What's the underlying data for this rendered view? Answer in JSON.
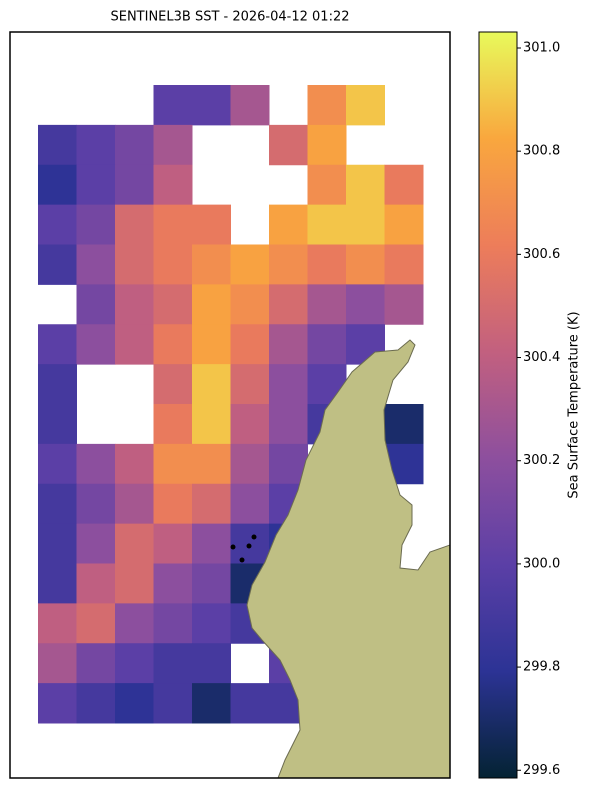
{
  "chart_data": {
    "type": "heatmap",
    "title": "SENTINEL3B SST - 2026-04-12 01:22",
    "colorbar_label": "Sea Surface Temperature (K)",
    "clim": [
      299.585,
      301.031
    ],
    "colorbar_ticks": [
      299.6,
      299.8,
      {
        "value": 300,
        "label": "300.0"
      },
      300.2,
      300.4,
      300.6,
      300.8,
      {
        "value": 301,
        "label": "301.0"
      }
    ],
    "colormap": [
      "#042333",
      "#2c3395",
      "#5b3fa6",
      "#8d4f9e",
      "#c2607f",
      "#ed7d5a",
      "#f9a73e",
      "#e8fa5b"
    ],
    "z": [
      [
        null,
        null,
        null,
        300.0,
        300.0,
        300.3,
        null,
        300.7,
        300.9,
        null
      ],
      [
        299.9,
        300.0,
        300.1,
        300.3,
        null,
        null,
        300.5,
        300.8,
        null,
        null
      ],
      [
        299.8,
        300.0,
        300.1,
        300.4,
        null,
        null,
        null,
        300.7,
        300.9,
        300.6
      ],
      [
        300.0,
        300.1,
        300.5,
        300.6,
        300.6,
        null,
        300.8,
        300.9,
        300.9,
        300.8
      ],
      [
        299.9,
        300.2,
        300.5,
        300.6,
        300.7,
        300.8,
        300.7,
        300.6,
        300.7,
        300.6
      ],
      [
        null,
        300.1,
        300.4,
        300.5,
        300.8,
        300.7,
        300.5,
        300.3,
        300.2,
        300.3
      ],
      [
        300.0,
        300.2,
        300.4,
        300.6,
        300.8,
        300.6,
        300.3,
        300.1,
        300.0,
        null
      ],
      [
        299.9,
        null,
        null,
        300.5,
        300.9,
        300.5,
        300.2,
        300.0,
        null,
        null
      ],
      [
        299.9,
        null,
        null,
        300.6,
        300.9,
        300.4,
        300.2,
        299.9,
        null,
        299.7
      ],
      [
        300.0,
        300.2,
        300.4,
        300.7,
        300.7,
        300.3,
        300.1,
        null,
        null,
        299.8
      ],
      [
        299.9,
        300.1,
        300.3,
        300.6,
        300.5,
        300.2,
        300.0,
        null,
        null,
        null
      ],
      [
        299.9,
        300.2,
        300.5,
        300.4,
        300.2,
        299.9,
        299.8,
        null,
        null,
        null
      ],
      [
        299.9,
        300.4,
        300.5,
        300.2,
        300.1,
        299.7,
        299.9,
        null,
        null,
        null
      ],
      [
        300.4,
        300.5,
        300.2,
        300.1,
        300.0,
        299.9,
        299.8,
        null,
        null,
        null
      ],
      [
        300.3,
        300.1,
        300.0,
        299.9,
        299.9,
        null,
        300.0,
        null,
        null,
        null
      ],
      [
        300.0,
        299.9,
        299.8,
        299.9,
        299.7,
        299.9,
        299.9,
        null,
        null,
        null
      ]
    ]
  }
}
